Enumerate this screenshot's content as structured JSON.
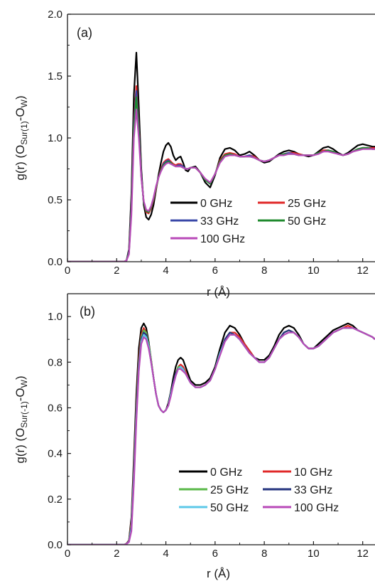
{
  "chart_data": [
    {
      "type": "line",
      "panel_label": "(a)",
      "ylabel": "g(r) (O<sub>Sur(1)</sub>-O<sub>W</sub>)",
      "ylabel_parts": {
        "base": "g(r) (O",
        "sub1": "Sur(1)",
        "mid": "-O",
        "sub2": "W",
        "end": ")"
      },
      "xlabel": "r (Å)",
      "xlim": [
        0,
        12.5
      ],
      "ylim": [
        0,
        2.0
      ],
      "xticks": [
        "0",
        "2",
        "4",
        "6",
        "8",
        "10",
        "12"
      ],
      "yticks": [
        "0.0",
        "0.5",
        "1.0",
        "1.5",
        "2.0"
      ],
      "x": [
        0,
        2.3,
        2.4,
        2.5,
        2.6,
        2.7,
        2.8,
        2.9,
        3.0,
        3.1,
        3.2,
        3.3,
        3.4,
        3.5,
        3.6,
        3.7,
        3.8,
        3.9,
        4.0,
        4.1,
        4.2,
        4.3,
        4.4,
        4.5,
        4.6,
        4.7,
        4.8,
        4.9,
        5.0,
        5.2,
        5.4,
        5.6,
        5.8,
        6.0,
        6.2,
        6.4,
        6.6,
        6.8,
        7.0,
        7.2,
        7.4,
        7.6,
        7.8,
        8.0,
        8.2,
        8.4,
        8.6,
        8.8,
        9.0,
        9.2,
        9.4,
        9.6,
        9.8,
        10.0,
        10.2,
        10.4,
        10.6,
        10.8,
        11.0,
        11.2,
        11.4,
        11.6,
        11.8,
        12.0,
        12.2,
        12.4,
        12.5
      ],
      "legend": {
        "placement": "lower-right",
        "columns": 2
      },
      "series": [
        {
          "name": "0 GHz",
          "color": "#000000",
          "values": [
            0,
            0,
            0.01,
            0.1,
            0.55,
            1.35,
            1.69,
            1.25,
            0.75,
            0.46,
            0.36,
            0.34,
            0.38,
            0.46,
            0.58,
            0.7,
            0.8,
            0.89,
            0.94,
            0.96,
            0.93,
            0.86,
            0.82,
            0.84,
            0.85,
            0.8,
            0.74,
            0.73,
            0.76,
            0.77,
            0.72,
            0.64,
            0.6,
            0.7,
            0.84,
            0.91,
            0.92,
            0.9,
            0.86,
            0.87,
            0.89,
            0.86,
            0.82,
            0.8,
            0.81,
            0.84,
            0.87,
            0.89,
            0.9,
            0.89,
            0.87,
            0.86,
            0.85,
            0.86,
            0.89,
            0.92,
            0.93,
            0.91,
            0.88,
            0.86,
            0.88,
            0.91,
            0.94,
            0.95,
            0.94,
            0.93,
            0.93
          ]
        },
        {
          "name": "25 GHz",
          "color": "#e02828",
          "values": [
            0,
            0,
            0.01,
            0.08,
            0.46,
            1.15,
            1.42,
            1.1,
            0.7,
            0.48,
            0.4,
            0.39,
            0.43,
            0.5,
            0.59,
            0.68,
            0.75,
            0.8,
            0.82,
            0.83,
            0.81,
            0.79,
            0.78,
            0.79,
            0.79,
            0.77,
            0.75,
            0.75,
            0.76,
            0.76,
            0.72,
            0.66,
            0.63,
            0.71,
            0.82,
            0.87,
            0.88,
            0.87,
            0.85,
            0.85,
            0.86,
            0.85,
            0.82,
            0.81,
            0.82,
            0.84,
            0.86,
            0.87,
            0.88,
            0.88,
            0.87,
            0.86,
            0.86,
            0.86,
            0.88,
            0.9,
            0.9,
            0.89,
            0.87,
            0.86,
            0.87,
            0.89,
            0.91,
            0.92,
            0.92,
            0.92,
            0.92
          ]
        },
        {
          "name": "33 GHz",
          "color": "#3a48a8",
          "values": [
            0,
            0,
            0.01,
            0.08,
            0.45,
            1.12,
            1.38,
            1.08,
            0.7,
            0.48,
            0.41,
            0.4,
            0.44,
            0.51,
            0.6,
            0.68,
            0.74,
            0.79,
            0.81,
            0.82,
            0.8,
            0.78,
            0.77,
            0.78,
            0.78,
            0.77,
            0.75,
            0.75,
            0.76,
            0.76,
            0.72,
            0.66,
            0.63,
            0.71,
            0.81,
            0.86,
            0.87,
            0.86,
            0.85,
            0.85,
            0.86,
            0.84,
            0.82,
            0.81,
            0.82,
            0.84,
            0.86,
            0.87,
            0.88,
            0.87,
            0.86,
            0.86,
            0.86,
            0.86,
            0.88,
            0.89,
            0.9,
            0.89,
            0.87,
            0.86,
            0.87,
            0.89,
            0.91,
            0.92,
            0.92,
            0.91,
            0.91
          ]
        },
        {
          "name": "50 GHz",
          "color": "#1f8a2e",
          "values": [
            0,
            0,
            0.01,
            0.07,
            0.42,
            1.08,
            1.33,
            1.05,
            0.69,
            0.48,
            0.41,
            0.4,
            0.44,
            0.51,
            0.6,
            0.68,
            0.74,
            0.78,
            0.8,
            0.81,
            0.8,
            0.78,
            0.77,
            0.77,
            0.77,
            0.76,
            0.75,
            0.75,
            0.76,
            0.76,
            0.72,
            0.66,
            0.63,
            0.71,
            0.81,
            0.86,
            0.87,
            0.86,
            0.85,
            0.85,
            0.85,
            0.84,
            0.82,
            0.81,
            0.82,
            0.84,
            0.86,
            0.87,
            0.87,
            0.87,
            0.86,
            0.86,
            0.86,
            0.86,
            0.88,
            0.89,
            0.9,
            0.89,
            0.87,
            0.86,
            0.87,
            0.89,
            0.91,
            0.92,
            0.92,
            0.91,
            0.91
          ]
        },
        {
          "name": "100 GHz",
          "color": "#b84ab8",
          "values": [
            0,
            0,
            0.01,
            0.06,
            0.38,
            1.0,
            1.23,
            1.0,
            0.68,
            0.49,
            0.42,
            0.41,
            0.45,
            0.52,
            0.61,
            0.68,
            0.73,
            0.77,
            0.79,
            0.8,
            0.79,
            0.78,
            0.77,
            0.77,
            0.77,
            0.76,
            0.75,
            0.75,
            0.76,
            0.76,
            0.72,
            0.67,
            0.64,
            0.71,
            0.8,
            0.85,
            0.86,
            0.86,
            0.85,
            0.85,
            0.85,
            0.84,
            0.82,
            0.81,
            0.82,
            0.84,
            0.86,
            0.86,
            0.87,
            0.87,
            0.86,
            0.86,
            0.86,
            0.86,
            0.87,
            0.89,
            0.89,
            0.88,
            0.87,
            0.86,
            0.87,
            0.89,
            0.9,
            0.91,
            0.91,
            0.91,
            0.91
          ]
        }
      ]
    },
    {
      "type": "line",
      "panel_label": "(b)",
      "ylabel": "g(r) (O<sub>Sur(-1)</sub>-O<sub>W</sub>)",
      "ylabel_parts": {
        "base": "g(r) (O",
        "sub1": "Sur(-1)",
        "mid": "-O",
        "sub2": "W",
        "end": ")"
      },
      "xlabel": "r (Å)",
      "xlim": [
        0,
        12.5
      ],
      "ylim": [
        0,
        1.1
      ],
      "xticks": [
        "0",
        "2",
        "4",
        "6",
        "8",
        "10",
        "12"
      ],
      "yticks": [
        "0.0",
        "0.2",
        "0.4",
        "0.6",
        "0.8",
        "1.0"
      ],
      "x": [
        0,
        2.3,
        2.4,
        2.5,
        2.6,
        2.7,
        2.8,
        2.9,
        3.0,
        3.1,
        3.2,
        3.3,
        3.4,
        3.5,
        3.6,
        3.7,
        3.8,
        3.9,
        4.0,
        4.1,
        4.2,
        4.3,
        4.4,
        4.5,
        4.6,
        4.7,
        4.8,
        4.9,
        5.0,
        5.2,
        5.4,
        5.6,
        5.8,
        6.0,
        6.2,
        6.4,
        6.6,
        6.8,
        7.0,
        7.2,
        7.4,
        7.6,
        7.8,
        8.0,
        8.2,
        8.4,
        8.6,
        8.8,
        9.0,
        9.2,
        9.4,
        9.6,
        9.8,
        10.0,
        10.2,
        10.4,
        10.6,
        10.8,
        11.0,
        11.2,
        11.4,
        11.6,
        11.8,
        12.0,
        12.2,
        12.4,
        12.5
      ],
      "legend": {
        "placement": "lower-right",
        "columns": 2
      },
      "series": [
        {
          "name": "0 GHz",
          "color": "#000000",
          "values": [
            0,
            0,
            0.005,
            0.02,
            0.12,
            0.38,
            0.66,
            0.86,
            0.95,
            0.97,
            0.95,
            0.89,
            0.81,
            0.73,
            0.66,
            0.61,
            0.59,
            0.58,
            0.59,
            0.62,
            0.67,
            0.73,
            0.78,
            0.81,
            0.82,
            0.81,
            0.78,
            0.75,
            0.72,
            0.7,
            0.7,
            0.71,
            0.73,
            0.78,
            0.86,
            0.93,
            0.96,
            0.95,
            0.92,
            0.88,
            0.85,
            0.82,
            0.81,
            0.81,
            0.83,
            0.87,
            0.92,
            0.95,
            0.96,
            0.95,
            0.92,
            0.88,
            0.86,
            0.86,
            0.88,
            0.9,
            0.92,
            0.94,
            0.95,
            0.96,
            0.97,
            0.96,
            0.94,
            0.93,
            0.92,
            0.91,
            0.9
          ]
        },
        {
          "name": "10 GHz",
          "color": "#e02828",
          "values": [
            0,
            0,
            0.005,
            0.018,
            0.1,
            0.34,
            0.61,
            0.82,
            0.92,
            0.95,
            0.93,
            0.88,
            0.81,
            0.73,
            0.66,
            0.61,
            0.59,
            0.58,
            0.59,
            0.61,
            0.66,
            0.71,
            0.75,
            0.78,
            0.79,
            0.78,
            0.76,
            0.73,
            0.71,
            0.69,
            0.69,
            0.7,
            0.72,
            0.77,
            0.84,
            0.9,
            0.93,
            0.93,
            0.91,
            0.88,
            0.85,
            0.82,
            0.8,
            0.8,
            0.82,
            0.86,
            0.9,
            0.93,
            0.94,
            0.93,
            0.91,
            0.88,
            0.86,
            0.86,
            0.87,
            0.89,
            0.91,
            0.93,
            0.94,
            0.95,
            0.96,
            0.95,
            0.94,
            0.93,
            0.92,
            0.91,
            0.9
          ]
        },
        {
          "name": "25 GHz",
          "color": "#5ab84a",
          "values": [
            0,
            0,
            0.004,
            0.016,
            0.09,
            0.32,
            0.59,
            0.8,
            0.91,
            0.94,
            0.93,
            0.88,
            0.81,
            0.73,
            0.66,
            0.61,
            0.59,
            0.58,
            0.59,
            0.61,
            0.66,
            0.71,
            0.75,
            0.78,
            0.78,
            0.77,
            0.75,
            0.73,
            0.71,
            0.69,
            0.69,
            0.7,
            0.72,
            0.77,
            0.84,
            0.9,
            0.93,
            0.92,
            0.9,
            0.87,
            0.84,
            0.82,
            0.8,
            0.8,
            0.82,
            0.86,
            0.9,
            0.93,
            0.94,
            0.93,
            0.91,
            0.88,
            0.86,
            0.86,
            0.87,
            0.89,
            0.91,
            0.93,
            0.94,
            0.95,
            0.95,
            0.95,
            0.94,
            0.93,
            0.92,
            0.91,
            0.9
          ]
        },
        {
          "name": "33 GHz",
          "color": "#26357f",
          "values": [
            0,
            0,
            0.004,
            0.015,
            0.08,
            0.31,
            0.58,
            0.79,
            0.9,
            0.93,
            0.92,
            0.87,
            0.8,
            0.73,
            0.66,
            0.61,
            0.59,
            0.58,
            0.59,
            0.61,
            0.66,
            0.71,
            0.75,
            0.77,
            0.78,
            0.77,
            0.75,
            0.73,
            0.71,
            0.69,
            0.69,
            0.7,
            0.72,
            0.77,
            0.84,
            0.9,
            0.93,
            0.92,
            0.9,
            0.87,
            0.84,
            0.82,
            0.8,
            0.8,
            0.82,
            0.86,
            0.9,
            0.93,
            0.94,
            0.93,
            0.91,
            0.88,
            0.86,
            0.86,
            0.87,
            0.89,
            0.91,
            0.93,
            0.94,
            0.95,
            0.95,
            0.95,
            0.94,
            0.93,
            0.92,
            0.91,
            0.9
          ]
        },
        {
          "name": "50 GHz",
          "color": "#5cc8e8",
          "values": [
            0,
            0,
            0.003,
            0.013,
            0.07,
            0.29,
            0.56,
            0.77,
            0.89,
            0.92,
            0.91,
            0.87,
            0.8,
            0.73,
            0.66,
            0.61,
            0.59,
            0.58,
            0.59,
            0.61,
            0.66,
            0.7,
            0.74,
            0.77,
            0.78,
            0.77,
            0.75,
            0.73,
            0.71,
            0.69,
            0.69,
            0.7,
            0.72,
            0.77,
            0.84,
            0.89,
            0.92,
            0.92,
            0.9,
            0.87,
            0.84,
            0.82,
            0.8,
            0.8,
            0.82,
            0.86,
            0.9,
            0.92,
            0.93,
            0.93,
            0.91,
            0.88,
            0.86,
            0.86,
            0.87,
            0.89,
            0.91,
            0.93,
            0.94,
            0.95,
            0.95,
            0.95,
            0.94,
            0.93,
            0.92,
            0.91,
            0.9
          ]
        },
        {
          "name": "100 GHz",
          "color": "#b84ab8",
          "values": [
            0,
            0,
            0.003,
            0.012,
            0.06,
            0.27,
            0.54,
            0.76,
            0.88,
            0.91,
            0.9,
            0.86,
            0.8,
            0.73,
            0.66,
            0.61,
            0.59,
            0.58,
            0.59,
            0.61,
            0.65,
            0.7,
            0.74,
            0.77,
            0.77,
            0.76,
            0.75,
            0.73,
            0.71,
            0.69,
            0.69,
            0.7,
            0.72,
            0.77,
            0.83,
            0.89,
            0.92,
            0.92,
            0.9,
            0.87,
            0.84,
            0.82,
            0.8,
            0.8,
            0.82,
            0.86,
            0.9,
            0.92,
            0.93,
            0.93,
            0.91,
            0.88,
            0.86,
            0.86,
            0.87,
            0.89,
            0.91,
            0.93,
            0.94,
            0.95,
            0.95,
            0.95,
            0.94,
            0.93,
            0.92,
            0.91,
            0.9
          ]
        }
      ]
    }
  ]
}
